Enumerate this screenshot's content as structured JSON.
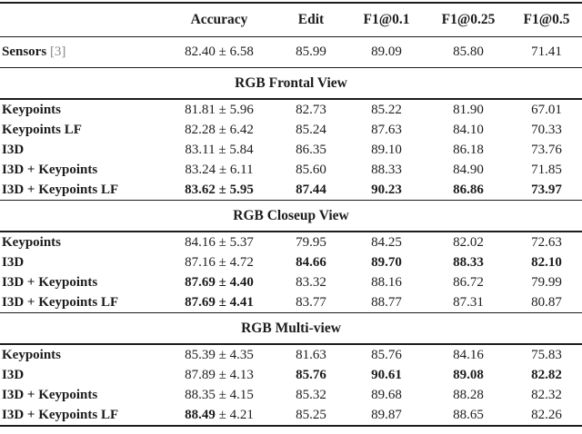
{
  "colors": {
    "citation": "#888888",
    "text": "#1c1c1c",
    "background": "#ffffff"
  },
  "table": {
    "columns": [
      "Accuracy",
      "Edit",
      "F1@0.1",
      "F1@0.25",
      "F1@0.5"
    ],
    "baseline": {
      "label": "Sensors",
      "citation": "[3]",
      "values": [
        "82.40 ± 6.58",
        "85.99",
        "89.09",
        "85.80",
        "71.41"
      ]
    },
    "sections": [
      {
        "title": "RGB Frontal View",
        "rows": [
          {
            "label": "Keypoints",
            "values": [
              "81.81 ± 5.96",
              "82.73",
              "85.22",
              "81.90",
              "67.01"
            ],
            "bold": [
              false,
              false,
              false,
              false,
              false
            ]
          },
          {
            "label": "Keypoints LF",
            "values": [
              "82.28 ± 6.42",
              "85.24",
              "87.63",
              "84.10",
              "70.33"
            ],
            "bold": [
              false,
              false,
              false,
              false,
              false
            ]
          },
          {
            "label": "I3D",
            "values": [
              "83.11 ± 5.84",
              "86.35",
              "89.10",
              "86.18",
              "73.76"
            ],
            "bold": [
              false,
              false,
              false,
              false,
              false
            ]
          },
          {
            "label": "I3D + Keypoints",
            "values": [
              "83.24 ± 6.11",
              "85.60",
              "88.33",
              "84.90",
              "71.85"
            ],
            "bold": [
              false,
              false,
              false,
              false,
              false
            ]
          },
          {
            "label": "I3D + Keypoints LF",
            "values": [
              "83.62 ± 5.95",
              "87.44",
              "90.23",
              "86.86",
              "73.97"
            ],
            "bold": [
              true,
              true,
              true,
              true,
              true
            ]
          }
        ]
      },
      {
        "title": "RGB Closeup View",
        "rows": [
          {
            "label": "Keypoints",
            "values": [
              "84.16 ± 5.37",
              "79.95",
              "84.25",
              "82.02",
              "72.63"
            ],
            "bold": [
              false,
              false,
              false,
              false,
              false
            ]
          },
          {
            "label": "I3D",
            "values": [
              "87.16 ± 4.72",
              "84.66",
              "89.70",
              "88.33",
              "82.10"
            ],
            "bold": [
              false,
              true,
              true,
              true,
              true
            ]
          },
          {
            "label": "I3D + Keypoints",
            "values": [
              "87.69 ± 4.40",
              "83.32",
              "88.16",
              "86.72",
              "79.99"
            ],
            "bold": [
              true,
              false,
              false,
              false,
              false
            ]
          },
          {
            "label": "I3D + Keypoints LF",
            "values": [
              "87.69 ± 4.41",
              "83.77",
              "88.77",
              "87.31",
              "80.87"
            ],
            "bold": [
              true,
              false,
              false,
              false,
              false
            ]
          }
        ]
      },
      {
        "title": "RGB Multi-view",
        "rows": [
          {
            "label": "Keypoints",
            "values": [
              "85.39 ± 4.35",
              "81.63",
              "85.76",
              "84.16",
              "75.83"
            ],
            "bold": [
              false,
              false,
              false,
              false,
              false
            ]
          },
          {
            "label": "I3D",
            "values": [
              "87.89 ± 4.13",
              "85.76",
              "90.61",
              "89.08",
              "82.82"
            ],
            "bold": [
              false,
              true,
              true,
              true,
              true
            ]
          },
          {
            "label": "I3D + Keypoints",
            "values": [
              "88.35 ± 4.15",
              "85.32",
              "89.68",
              "88.28",
              "82.32"
            ],
            "bold": [
              false,
              false,
              false,
              false,
              false
            ]
          },
          {
            "label": "I3D + Keypoints LF",
            "values": [
              "88.49 ± 4.21",
              "85.25",
              "89.87",
              "88.65",
              "82.26"
            ],
            "bold": [
              false,
              false,
              false,
              false,
              false
            ],
            "split": {
              "index": 0,
              "bold_text": "88.49",
              "normal_text": " ± 4.21"
            }
          }
        ]
      }
    ]
  }
}
